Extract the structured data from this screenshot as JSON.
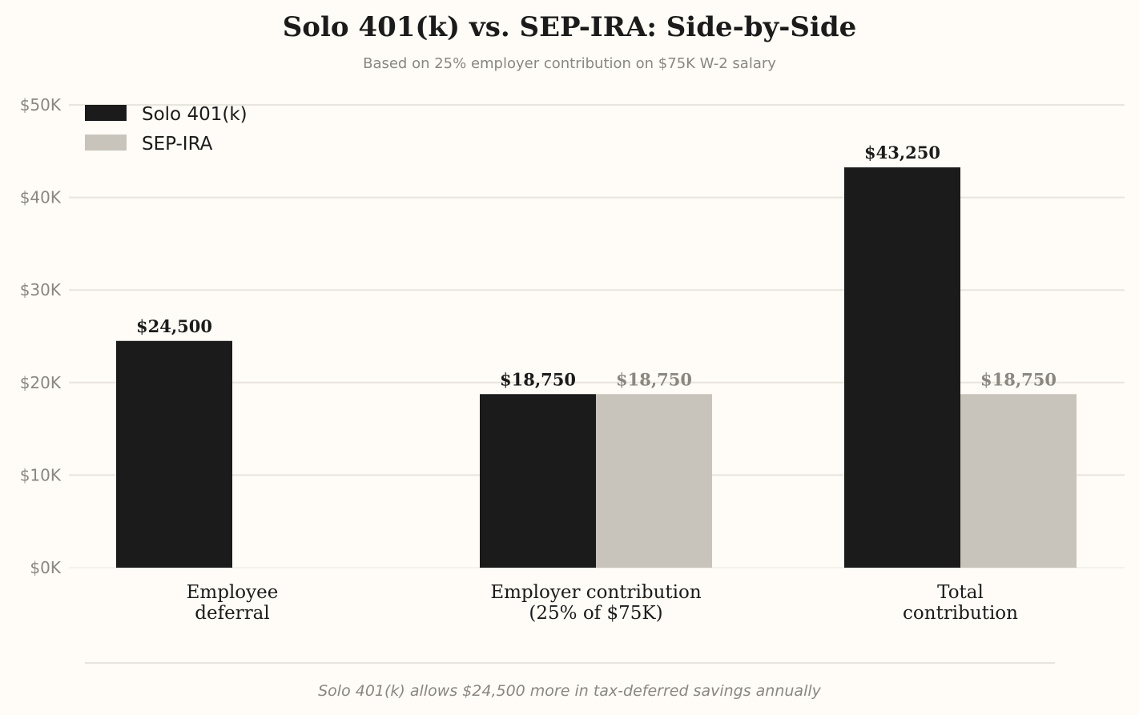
{
  "title": "Solo 401(k) vs. SEP-IRA: Side-by-Side",
  "subtitle": "Based on 25% employer contribution on $75K W-2 salary",
  "footer_note": "Solo 401(k) allows $24,500 more in tax-deferred savings annually",
  "colors": {
    "background": "#fffbf6",
    "solo": "#1b1b1b",
    "sep": "#c8c4bc",
    "sep_label": "#8a8680",
    "grid": "#e8e4de",
    "tick": "#8a8680"
  },
  "chart_data": {
    "type": "bar",
    "categories": [
      [
        "Employee",
        "deferral"
      ],
      [
        "Employer contribution",
        "(25% of $75K)"
      ],
      [
        "Total",
        "contribution"
      ]
    ],
    "series": [
      {
        "name": "Solo 401(k)",
        "values": [
          24500,
          18750,
          43250
        ],
        "labels": [
          "$24,500",
          "$18,750",
          "$43,250"
        ]
      },
      {
        "name": "SEP-IRA",
        "values": [
          0,
          18750,
          18750
        ],
        "labels": [
          "",
          "$18,750",
          "$18,750"
        ]
      }
    ],
    "ylim": [
      0,
      50000
    ],
    "yticks": [
      0,
      10000,
      20000,
      30000,
      40000,
      50000
    ],
    "ytick_labels": [
      "$0K",
      "$10K",
      "$20K",
      "$30K",
      "$40K",
      "$50K"
    ],
    "grid": true,
    "legend_position": "top-left"
  }
}
